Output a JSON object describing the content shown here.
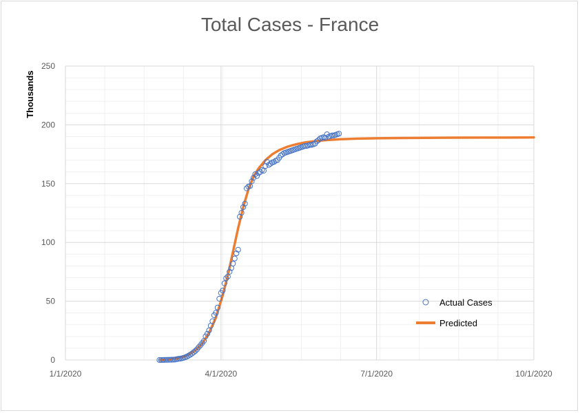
{
  "chart_data": {
    "type": "scatter",
    "title": "Total Cases - France",
    "xlabel": "",
    "ylabel": "Thousands",
    "x_axis": {
      "type": "date",
      "min": "2020-01-01",
      "max": "2020-10-01",
      "tick_labels": [
        "1/1/2020",
        "4/1/2020",
        "7/1/2020",
        "10/1/2020"
      ],
      "tick_values": [
        "2020-01-01",
        "2020-04-01",
        "2020-07-01",
        "2020-10-01"
      ]
    },
    "y_axis": {
      "min": 0,
      "max": 250,
      "tick_labels": [
        "0",
        "50",
        "100",
        "150",
        "200",
        "250"
      ],
      "tick_values": [
        0,
        50,
        100,
        150,
        200,
        250
      ]
    },
    "grid": true,
    "legend_position": "bottom-right",
    "colors": {
      "actual": "#4472c4",
      "predicted": "#ed7d31",
      "grid": "#d9d9d9",
      "minor_grid": "#f0f0f0"
    },
    "series": [
      {
        "name": "Actual Cases",
        "kind": "scatter",
        "points": [
          [
            "2020-02-25",
            0.014
          ],
          [
            "2020-02-26",
            0.018
          ],
          [
            "2020-02-27",
            0.038
          ],
          [
            "2020-02-28",
            0.057
          ],
          [
            "2020-02-29",
            0.1
          ],
          [
            "2020-03-01",
            0.13
          ],
          [
            "2020-03-02",
            0.19
          ],
          [
            "2020-03-03",
            0.21
          ],
          [
            "2020-03-04",
            0.29
          ],
          [
            "2020-03-05",
            0.38
          ],
          [
            "2020-03-06",
            0.65
          ],
          [
            "2020-03-07",
            0.95
          ],
          [
            "2020-03-08",
            1.13
          ],
          [
            "2020-03-09",
            1.41
          ],
          [
            "2020-03-10",
            1.78
          ],
          [
            "2020-03-11",
            2.29
          ],
          [
            "2020-03-12",
            2.88
          ],
          [
            "2020-03-13",
            3.66
          ],
          [
            "2020-03-14",
            4.5
          ],
          [
            "2020-03-15",
            5.42
          ],
          [
            "2020-03-16",
            6.63
          ],
          [
            "2020-03-17",
            7.73
          ],
          [
            "2020-03-18",
            9.13
          ],
          [
            "2020-03-19",
            10.99
          ],
          [
            "2020-03-20",
            12.6
          ],
          [
            "2020-03-21",
            14.46
          ],
          [
            "2020-03-22",
            16.24
          ],
          [
            "2020-03-23",
            20.12
          ],
          [
            "2020-03-24",
            22.3
          ],
          [
            "2020-03-25",
            25.2
          ],
          [
            "2020-03-26",
            29.2
          ],
          [
            "2020-03-27",
            33.0
          ],
          [
            "2020-03-28",
            38.1
          ],
          [
            "2020-03-29",
            40.2
          ],
          [
            "2020-03-30",
            44.6
          ],
          [
            "2020-03-31",
            52.1
          ],
          [
            "2020-04-01",
            56.99
          ],
          [
            "2020-04-02",
            59.1
          ],
          [
            "2020-04-03",
            65.2
          ],
          [
            "2020-04-04",
            69.5
          ],
          [
            "2020-04-05",
            71.0
          ],
          [
            "2020-04-06",
            75.0
          ],
          [
            "2020-04-07",
            78.2
          ],
          [
            "2020-04-08",
            82.0
          ],
          [
            "2020-04-09",
            86.3
          ],
          [
            "2020-04-10",
            90.7
          ],
          [
            "2020-04-11",
            93.8
          ],
          [
            "2020-04-12",
            121.9
          ],
          [
            "2020-04-13",
            125.2
          ],
          [
            "2020-04-14",
            130.0
          ],
          [
            "2020-04-15",
            133.0
          ],
          [
            "2020-04-16",
            146.0
          ],
          [
            "2020-04-17",
            147.5
          ],
          [
            "2020-04-18",
            148.0
          ],
          [
            "2020-04-19",
            152.0
          ],
          [
            "2020-04-20",
            155.0
          ],
          [
            "2020-04-21",
            158.0
          ],
          [
            "2020-04-22",
            156.5
          ],
          [
            "2020-04-23",
            159.0
          ],
          [
            "2020-04-24",
            160.0
          ],
          [
            "2020-04-25",
            161.5
          ],
          [
            "2020-04-26",
            161.0
          ],
          [
            "2020-04-27",
            165.0
          ],
          [
            "2020-04-28",
            168.5
          ],
          [
            "2020-04-29",
            166.0
          ],
          [
            "2020-04-30",
            167.0
          ],
          [
            "2020-05-01",
            168.0
          ],
          [
            "2020-05-02",
            168.5
          ],
          [
            "2020-05-03",
            169.5
          ],
          [
            "2020-05-04",
            170.0
          ],
          [
            "2020-05-05",
            172.0
          ],
          [
            "2020-05-06",
            174.0
          ],
          [
            "2020-05-07",
            175.0
          ],
          [
            "2020-05-08",
            176.0
          ],
          [
            "2020-05-09",
            176.5
          ],
          [
            "2020-05-10",
            177.0
          ],
          [
            "2020-05-11",
            177.5
          ],
          [
            "2020-05-12",
            178.0
          ],
          [
            "2020-05-13",
            178.5
          ],
          [
            "2020-05-14",
            179.0
          ],
          [
            "2020-05-15",
            179.5
          ],
          [
            "2020-05-16",
            180.0
          ],
          [
            "2020-05-17",
            180.5
          ],
          [
            "2020-05-18",
            181.0
          ],
          [
            "2020-05-19",
            181.5
          ],
          [
            "2020-05-20",
            182.0
          ],
          [
            "2020-05-21",
            182.0
          ],
          [
            "2020-05-22",
            182.5
          ],
          [
            "2020-05-23",
            183.0
          ],
          [
            "2020-05-24",
            183.0
          ],
          [
            "2020-05-25",
            183.5
          ],
          [
            "2020-05-26",
            184.0
          ],
          [
            "2020-05-27",
            186.0
          ],
          [
            "2020-05-28",
            187.0
          ],
          [
            "2020-05-29",
            188.5
          ],
          [
            "2020-05-30",
            189.0
          ],
          [
            "2020-05-31",
            189.5
          ],
          [
            "2020-06-01",
            189.0
          ],
          [
            "2020-06-02",
            192.0
          ],
          [
            "2020-06-03",
            190.0
          ],
          [
            "2020-06-04",
            190.5
          ],
          [
            "2020-06-05",
            191.0
          ],
          [
            "2020-06-06",
            191.0
          ],
          [
            "2020-06-07",
            191.5
          ],
          [
            "2020-06-08",
            192.0
          ],
          [
            "2020-06-09",
            192.5
          ]
        ]
      },
      {
        "name": "Predicted",
        "kind": "line",
        "points": [
          [
            "2020-02-25",
            0.1
          ],
          [
            "2020-03-01",
            0.35
          ],
          [
            "2020-03-05",
            1.0
          ],
          [
            "2020-03-09",
            2.2
          ],
          [
            "2020-03-13",
            4.5
          ],
          [
            "2020-03-17",
            8.0
          ],
          [
            "2020-03-21",
            14.0
          ],
          [
            "2020-03-25",
            23.0
          ],
          [
            "2020-03-29",
            36.0
          ],
          [
            "2020-04-02",
            55.0
          ],
          [
            "2020-04-05",
            72.0
          ],
          [
            "2020-04-08",
            92.0
          ],
          [
            "2020-04-11",
            112.0
          ],
          [
            "2020-04-14",
            130.0
          ],
          [
            "2020-04-17",
            145.0
          ],
          [
            "2020-04-20",
            156.0
          ],
          [
            "2020-04-23",
            163.0
          ],
          [
            "2020-04-27",
            170.0
          ],
          [
            "2020-05-01",
            175.0
          ],
          [
            "2020-05-05",
            178.5
          ],
          [
            "2020-05-10",
            181.5
          ],
          [
            "2020-05-15",
            183.5
          ],
          [
            "2020-05-20",
            185.0
          ],
          [
            "2020-05-25",
            186.0
          ],
          [
            "2020-06-01",
            187.0
          ],
          [
            "2020-06-10",
            187.8
          ],
          [
            "2020-06-20",
            188.3
          ],
          [
            "2020-07-01",
            188.6
          ],
          [
            "2020-07-15",
            188.8
          ],
          [
            "2020-08-01",
            189.0
          ],
          [
            "2020-08-15",
            189.1
          ],
          [
            "2020-09-01",
            189.2
          ],
          [
            "2020-09-15",
            189.2
          ],
          [
            "2020-10-01",
            189.3
          ]
        ]
      }
    ]
  }
}
